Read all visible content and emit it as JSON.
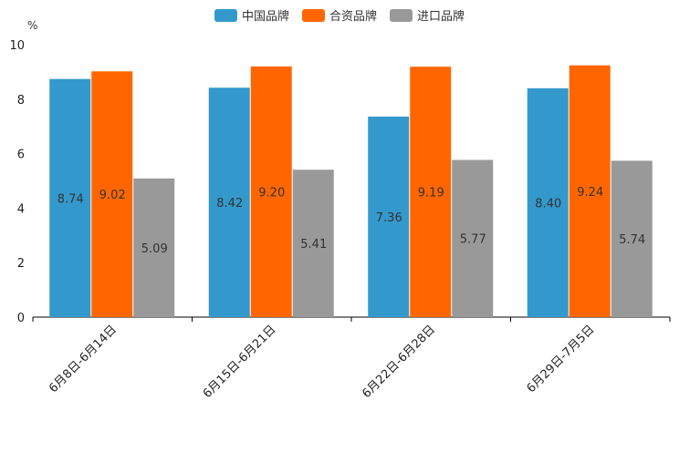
{
  "chart_data": {
    "type": "bar",
    "unit": "%",
    "categories": [
      "6月8日-6月14日",
      "6月15日-6月21日",
      "6月22日-6月28日",
      "6月29日-7月5日"
    ],
    "series": [
      {
        "name": "中国品牌",
        "color": "#3399cc",
        "values": [
          8.74,
          8.42,
          7.36,
          8.4
        ],
        "labels": [
          "8.74",
          "8.42",
          "7.36",
          "8.40"
        ]
      },
      {
        "name": "合资品牌",
        "color": "#ff6600",
        "values": [
          9.02,
          9.2,
          9.19,
          9.24
        ],
        "labels": [
          "9.02",
          "9.20",
          "9.19",
          "9.24"
        ]
      },
      {
        "name": "进口品牌",
        "color": "#999999",
        "values": [
          5.09,
          5.41,
          5.77,
          5.74
        ],
        "labels": [
          "5.09",
          "5.41",
          "5.77",
          "5.74"
        ]
      }
    ],
    "ylim": [
      0,
      10
    ],
    "yticks": [
      "0",
      "2",
      "4",
      "6",
      "8",
      "10"
    ],
    "xlabel": "",
    "ylabel": "%",
    "legend_position": "top-center"
  }
}
